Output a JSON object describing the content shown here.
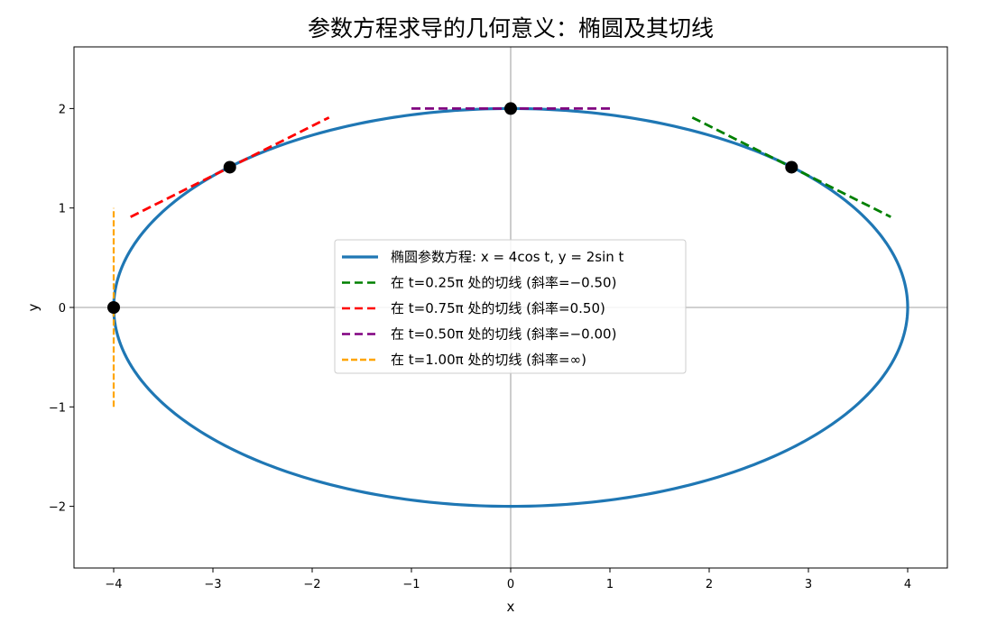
{
  "chart_data": {
    "type": "line",
    "title": "参数方程求导的几何意义：椭圆及其切线",
    "xlabel": "x",
    "ylabel": "y",
    "xlim": [
      -4.4,
      4.4
    ],
    "ylim": [
      -2.62,
      2.62
    ],
    "xticks": [
      -4,
      -3,
      -2,
      -1,
      0,
      1,
      2,
      3,
      4
    ],
    "yticks": [
      -2,
      -1,
      0,
      1,
      2
    ],
    "xtick_labels": [
      "−4",
      "−3",
      "−2",
      "−1",
      "0",
      "1",
      "2",
      "3",
      "4"
    ],
    "ytick_labels": [
      "−2",
      "−1",
      "0",
      "1",
      "2"
    ],
    "grid": false,
    "axis_lines_at_origin": true,
    "legend_placement": "center",
    "ellipse": {
      "name": "椭圆参数方程: x = 4cos t, y = 2sin t",
      "a": 4,
      "b": 2,
      "color": "#1f77b4"
    },
    "tangents": [
      {
        "name": "在 t=0.25π 处的切线 (斜率=−0.50)",
        "point": [
          2.83,
          1.41
        ],
        "slope": -0.5,
        "color": "#008000",
        "dash": "long"
      },
      {
        "name": "在 t=0.75π 处的切线 (斜率=0.50)",
        "point": [
          -2.83,
          1.41
        ],
        "slope": 0.5,
        "color": "#ff0000",
        "dash": "long"
      },
      {
        "name": "在 t=0.50π 处的切线 (斜率=−0.00)",
        "point": [
          0,
          2
        ],
        "slope": 0,
        "color": "#800080",
        "dash": "long"
      },
      {
        "name": "在 t=1.00π 处的切线 (斜率=∞)",
        "point": [
          -4,
          0
        ],
        "slope": null,
        "color": "#ffa500",
        "dash": "short"
      }
    ],
    "points": [
      [
        2.83,
        1.41
      ],
      [
        -2.83,
        1.41
      ],
      [
        0,
        2
      ],
      [
        -4,
        0
      ]
    ]
  }
}
